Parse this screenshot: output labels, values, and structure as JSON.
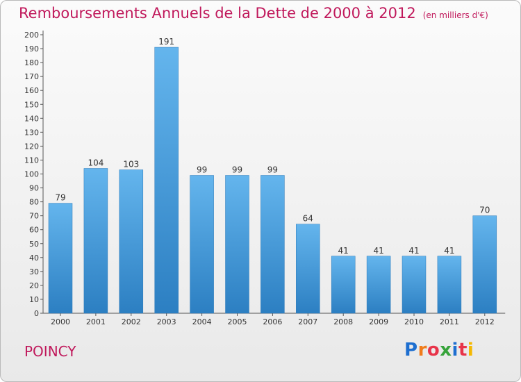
{
  "title": "Remboursements Annuels de la Dette de 2000 à 2012",
  "unit": "(en milliers d'€)",
  "city": "POINCY",
  "logo": {
    "letters": [
      "P",
      "r",
      "o",
      "x",
      "i",
      "t",
      "i"
    ],
    "colors": [
      "#1e6fd0",
      "#f07c1b",
      "#e8344a",
      "#36a33a",
      "#1e6fd0",
      "#e8344a",
      "#f5b800"
    ]
  },
  "colors": {
    "bar_light": "#64b5ed",
    "bar_dark": "#2c7fc2",
    "accent": "#c0185b"
  },
  "chart_data": {
    "type": "bar",
    "title": "Remboursements Annuels de la Dette de 2000 à 2012",
    "subtitle": "(en milliers d'€)",
    "categories": [
      "2000",
      "2001",
      "2002",
      "2003",
      "2004",
      "2005",
      "2006",
      "2007",
      "2008",
      "2009",
      "2010",
      "2011",
      "2012"
    ],
    "values": [
      79,
      104,
      103,
      191,
      99,
      99,
      99,
      64,
      41,
      41,
      41,
      41,
      70
    ],
    "ylim": [
      0,
      200
    ],
    "ytick_step": 10,
    "grid": false,
    "legend": "none"
  }
}
